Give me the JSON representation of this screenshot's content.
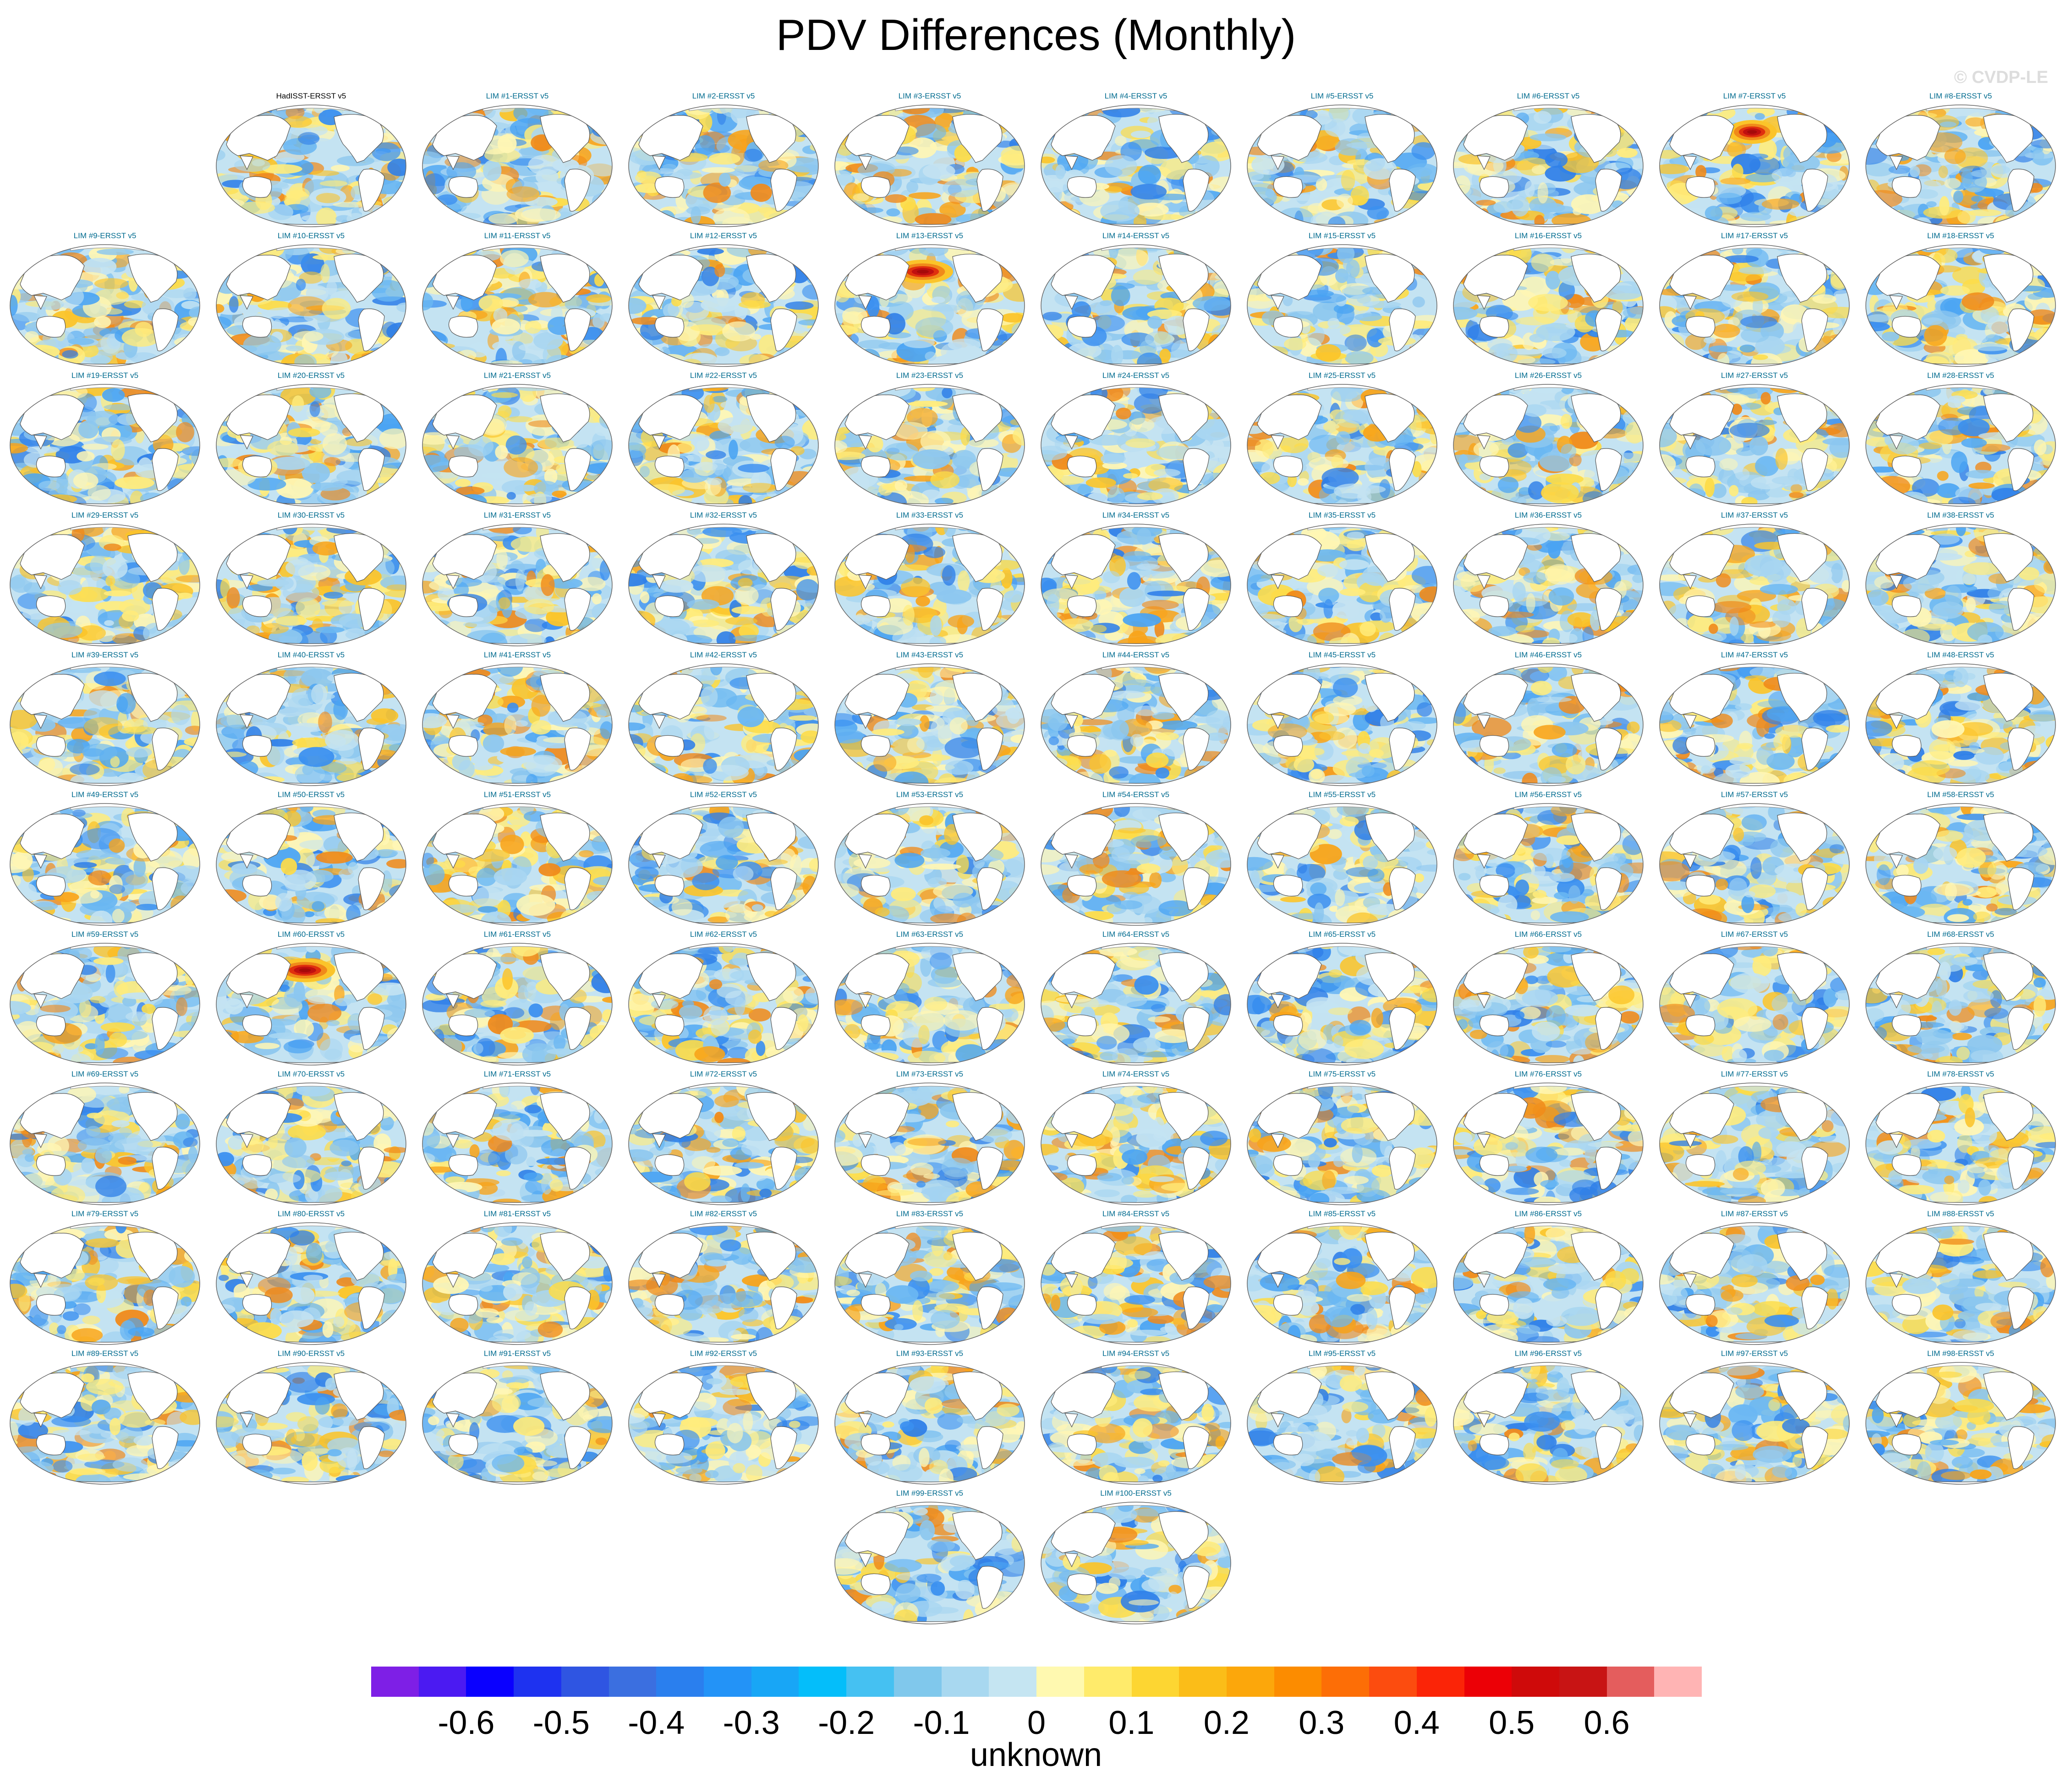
{
  "title": "PDV Differences (Monthly)",
  "copyright": "© CVDP-LE",
  "panels": [
    {
      "label": "HadISST-ERSST v5",
      "seed": 7,
      "hot": 0,
      "obs": true
    },
    {
      "label": "LIM #1-ERSST v5",
      "seed": 11,
      "hot": 0
    },
    {
      "label": "LIM #2-ERSST v5",
      "seed": 13,
      "hot": 0
    },
    {
      "label": "LIM #3-ERSST v5",
      "seed": 17,
      "hot": 0
    },
    {
      "label": "LIM #4-ERSST v5",
      "seed": 19,
      "hot": 0
    },
    {
      "label": "LIM #5-ERSST v5",
      "seed": 23,
      "hot": 0
    },
    {
      "label": "LIM #6-ERSST v5",
      "seed": 29,
      "hot": 0
    },
    {
      "label": "LIM #7-ERSST v5",
      "seed": 31,
      "hot": 1
    },
    {
      "label": "LIM #8-ERSST v5",
      "seed": 37,
      "hot": 0
    },
    {
      "label": "LIM #9-ERSST v5",
      "seed": 41,
      "hot": 0
    },
    {
      "label": "LIM #10-ERSST v5",
      "seed": 43,
      "hot": 0
    },
    {
      "label": "LIM #11-ERSST v5",
      "seed": 47,
      "hot": 0
    },
    {
      "label": "LIM #12-ERSST v5",
      "seed": 53,
      "hot": 0
    },
    {
      "label": "LIM #13-ERSST v5",
      "seed": 59,
      "hot": 2
    },
    {
      "label": "LIM #14-ERSST v5",
      "seed": 61,
      "hot": 0
    },
    {
      "label": "LIM #15-ERSST v5",
      "seed": 67,
      "hot": 0
    },
    {
      "label": "LIM #16-ERSST v5",
      "seed": 71,
      "hot": 0
    },
    {
      "label": "LIM #17-ERSST v5",
      "seed": 73,
      "hot": 0
    },
    {
      "label": "LIM #18-ERSST v5",
      "seed": 79,
      "hot": 0
    },
    {
      "label": "LIM #19-ERSST v5",
      "seed": 83,
      "hot": 0
    },
    {
      "label": "LIM #20-ERSST v5",
      "seed": 89,
      "hot": 0
    },
    {
      "label": "LIM #21-ERSST v5",
      "seed": 97,
      "hot": 0
    },
    {
      "label": "LIM #22-ERSST v5",
      "seed": 101,
      "hot": 0
    },
    {
      "label": "LIM #23-ERSST v5",
      "seed": 103,
      "hot": 0
    },
    {
      "label": "LIM #24-ERSST v5",
      "seed": 107,
      "hot": 0
    },
    {
      "label": "LIM #25-ERSST v5",
      "seed": 109,
      "hot": 0
    },
    {
      "label": "LIM #26-ERSST v5",
      "seed": 113,
      "hot": 0
    },
    {
      "label": "LIM #27-ERSST v5",
      "seed": 127,
      "hot": 0
    },
    {
      "label": "LIM #28-ERSST v5",
      "seed": 131,
      "hot": 0
    },
    {
      "label": "LIM #29-ERSST v5",
      "seed": 137,
      "hot": 0
    },
    {
      "label": "LIM #30-ERSST v5",
      "seed": 139,
      "hot": 0
    },
    {
      "label": "LIM #31-ERSST v5",
      "seed": 149,
      "hot": 0
    },
    {
      "label": "LIM #32-ERSST v5",
      "seed": 151,
      "hot": 0
    },
    {
      "label": "LIM #33-ERSST v5",
      "seed": 157,
      "hot": 0
    },
    {
      "label": "LIM #34-ERSST v5",
      "seed": 163,
      "hot": 0
    },
    {
      "label": "LIM #35-ERSST v5",
      "seed": 167,
      "hot": 0
    },
    {
      "label": "LIM #36-ERSST v5",
      "seed": 173,
      "hot": 0
    },
    {
      "label": "LIM #37-ERSST v5",
      "seed": 179,
      "hot": 0
    },
    {
      "label": "LIM #38-ERSST v5",
      "seed": 181,
      "hot": 0
    },
    {
      "label": "LIM #39-ERSST v5",
      "seed": 191,
      "hot": 0
    },
    {
      "label": "LIM #40-ERSST v5",
      "seed": 193,
      "hot": 0
    },
    {
      "label": "LIM #41-ERSST v5",
      "seed": 197,
      "hot": 0
    },
    {
      "label": "LIM #42-ERSST v5",
      "seed": 199,
      "hot": 0
    },
    {
      "label": "LIM #43-ERSST v5",
      "seed": 211,
      "hot": 0
    },
    {
      "label": "LIM #44-ERSST v5",
      "seed": 223,
      "hot": 0
    },
    {
      "label": "LIM #45-ERSST v5",
      "seed": 227,
      "hot": 0
    },
    {
      "label": "LIM #46-ERSST v5",
      "seed": 229,
      "hot": 0
    },
    {
      "label": "LIM #47-ERSST v5",
      "seed": 233,
      "hot": 0
    },
    {
      "label": "LIM #48-ERSST v5",
      "seed": 239,
      "hot": 0
    },
    {
      "label": "LIM #49-ERSST v5",
      "seed": 241,
      "hot": 0
    },
    {
      "label": "LIM #50-ERSST v5",
      "seed": 251,
      "hot": 0
    },
    {
      "label": "LIM #51-ERSST v5",
      "seed": 257,
      "hot": 0
    },
    {
      "label": "LIM #52-ERSST v5",
      "seed": 263,
      "hot": 0
    },
    {
      "label": "LIM #53-ERSST v5",
      "seed": 269,
      "hot": 0
    },
    {
      "label": "LIM #54-ERSST v5",
      "seed": 271,
      "hot": 0
    },
    {
      "label": "LIM #55-ERSST v5",
      "seed": 277,
      "hot": 0
    },
    {
      "label": "LIM #56-ERSST v5",
      "seed": 281,
      "hot": 0
    },
    {
      "label": "LIM #57-ERSST v5",
      "seed": 283,
      "hot": 0
    },
    {
      "label": "LIM #58-ERSST v5",
      "seed": 293,
      "hot": 0
    },
    {
      "label": "LIM #59-ERSST v5",
      "seed": 307,
      "hot": 0
    },
    {
      "label": "LIM #60-ERSST v5",
      "seed": 311,
      "hot": 2
    },
    {
      "label": "LIM #61-ERSST v5",
      "seed": 313,
      "hot": 0
    },
    {
      "label": "LIM #62-ERSST v5",
      "seed": 317,
      "hot": 0
    },
    {
      "label": "LIM #63-ERSST v5",
      "seed": 331,
      "hot": 0
    },
    {
      "label": "LIM #64-ERSST v5",
      "seed": 337,
      "hot": 0
    },
    {
      "label": "LIM #65-ERSST v5",
      "seed": 347,
      "hot": 0
    },
    {
      "label": "LIM #66-ERSST v5",
      "seed": 349,
      "hot": 0
    },
    {
      "label": "LIM #67-ERSST v5",
      "seed": 353,
      "hot": 0
    },
    {
      "label": "LIM #68-ERSST v5",
      "seed": 359,
      "hot": 0
    },
    {
      "label": "LIM #69-ERSST v5",
      "seed": 367,
      "hot": 0
    },
    {
      "label": "LIM #70-ERSST v5",
      "seed": 373,
      "hot": 0
    },
    {
      "label": "LIM #71-ERSST v5",
      "seed": 379,
      "hot": 0
    },
    {
      "label": "LIM #72-ERSST v5",
      "seed": 383,
      "hot": 0
    },
    {
      "label": "LIM #73-ERSST v5",
      "seed": 389,
      "hot": 0
    },
    {
      "label": "LIM #74-ERSST v5",
      "seed": 397,
      "hot": 0
    },
    {
      "label": "LIM #75-ERSST v5",
      "seed": 401,
      "hot": 0
    },
    {
      "label": "LIM #76-ERSST v5",
      "seed": 409,
      "hot": 0
    },
    {
      "label": "LIM #77-ERSST v5",
      "seed": 419,
      "hot": 0
    },
    {
      "label": "LIM #78-ERSST v5",
      "seed": 421,
      "hot": 0
    },
    {
      "label": "LIM #79-ERSST v5",
      "seed": 431,
      "hot": 0
    },
    {
      "label": "LIM #80-ERSST v5",
      "seed": 433,
      "hot": 0
    },
    {
      "label": "LIM #81-ERSST v5",
      "seed": 439,
      "hot": 0
    },
    {
      "label": "LIM #82-ERSST v5",
      "seed": 443,
      "hot": 0
    },
    {
      "label": "LIM #83-ERSST v5",
      "seed": 449,
      "hot": 0
    },
    {
      "label": "LIM #84-ERSST v5",
      "seed": 457,
      "hot": 0
    },
    {
      "label": "LIM #85-ERSST v5",
      "seed": 461,
      "hot": 0
    },
    {
      "label": "LIM #86-ERSST v5",
      "seed": 463,
      "hot": 0
    },
    {
      "label": "LIM #87-ERSST v5",
      "seed": 467,
      "hot": 0
    },
    {
      "label": "LIM #88-ERSST v5",
      "seed": 479,
      "hot": 0
    },
    {
      "label": "LIM #89-ERSST v5",
      "seed": 487,
      "hot": 0
    },
    {
      "label": "LIM #90-ERSST v5",
      "seed": 491,
      "hot": 0
    },
    {
      "label": "LIM #91-ERSST v5",
      "seed": 499,
      "hot": 0
    },
    {
      "label": "LIM #92-ERSST v5",
      "seed": 503,
      "hot": 0
    },
    {
      "label": "LIM #93-ERSST v5",
      "seed": 509,
      "hot": 0
    },
    {
      "label": "LIM #94-ERSST v5",
      "seed": 521,
      "hot": 0
    },
    {
      "label": "LIM #95-ERSST v5",
      "seed": 523,
      "hot": 0
    },
    {
      "label": "LIM #96-ERSST v5",
      "seed": 541,
      "hot": 0
    },
    {
      "label": "LIM #97-ERSST v5",
      "seed": 547,
      "hot": 0
    },
    {
      "label": "LIM #98-ERSST v5",
      "seed": 557,
      "hot": 0
    },
    {
      "label": "LIM #99-ERSST v5",
      "seed": 563,
      "hot": 0
    },
    {
      "label": "LIM #100-ERSST v5",
      "seed": 569,
      "hot": 0
    }
  ],
  "colorbar": {
    "colors": [
      "#7e1fe6",
      "#4b1af2",
      "#0a00ff",
      "#1e32f0",
      "#2f55e2",
      "#3b6fe0",
      "#2a7fee",
      "#2393f7",
      "#18a6f6",
      "#04befa",
      "#45c1f2",
      "#80c8ec",
      "#a8d8f0",
      "#c5e5f2",
      "#fff9b0",
      "#ffeb6b",
      "#fdd632",
      "#fbbd18",
      "#fca70b",
      "#fc8c00",
      "#fd6e06",
      "#fc4c0f",
      "#fb2407",
      "#ec0006",
      "#cf0a0a",
      "#c81414",
      "#e45d5d",
      "#ffb4b4"
    ],
    "labels": [
      "-0.6",
      "-0.5",
      "-0.4",
      "-0.3",
      "-0.2",
      "-0.1",
      "0",
      "0.1",
      "0.2",
      "0.3",
      "0.4",
      "0.5",
      "0.6"
    ],
    "units": "unknown"
  }
}
